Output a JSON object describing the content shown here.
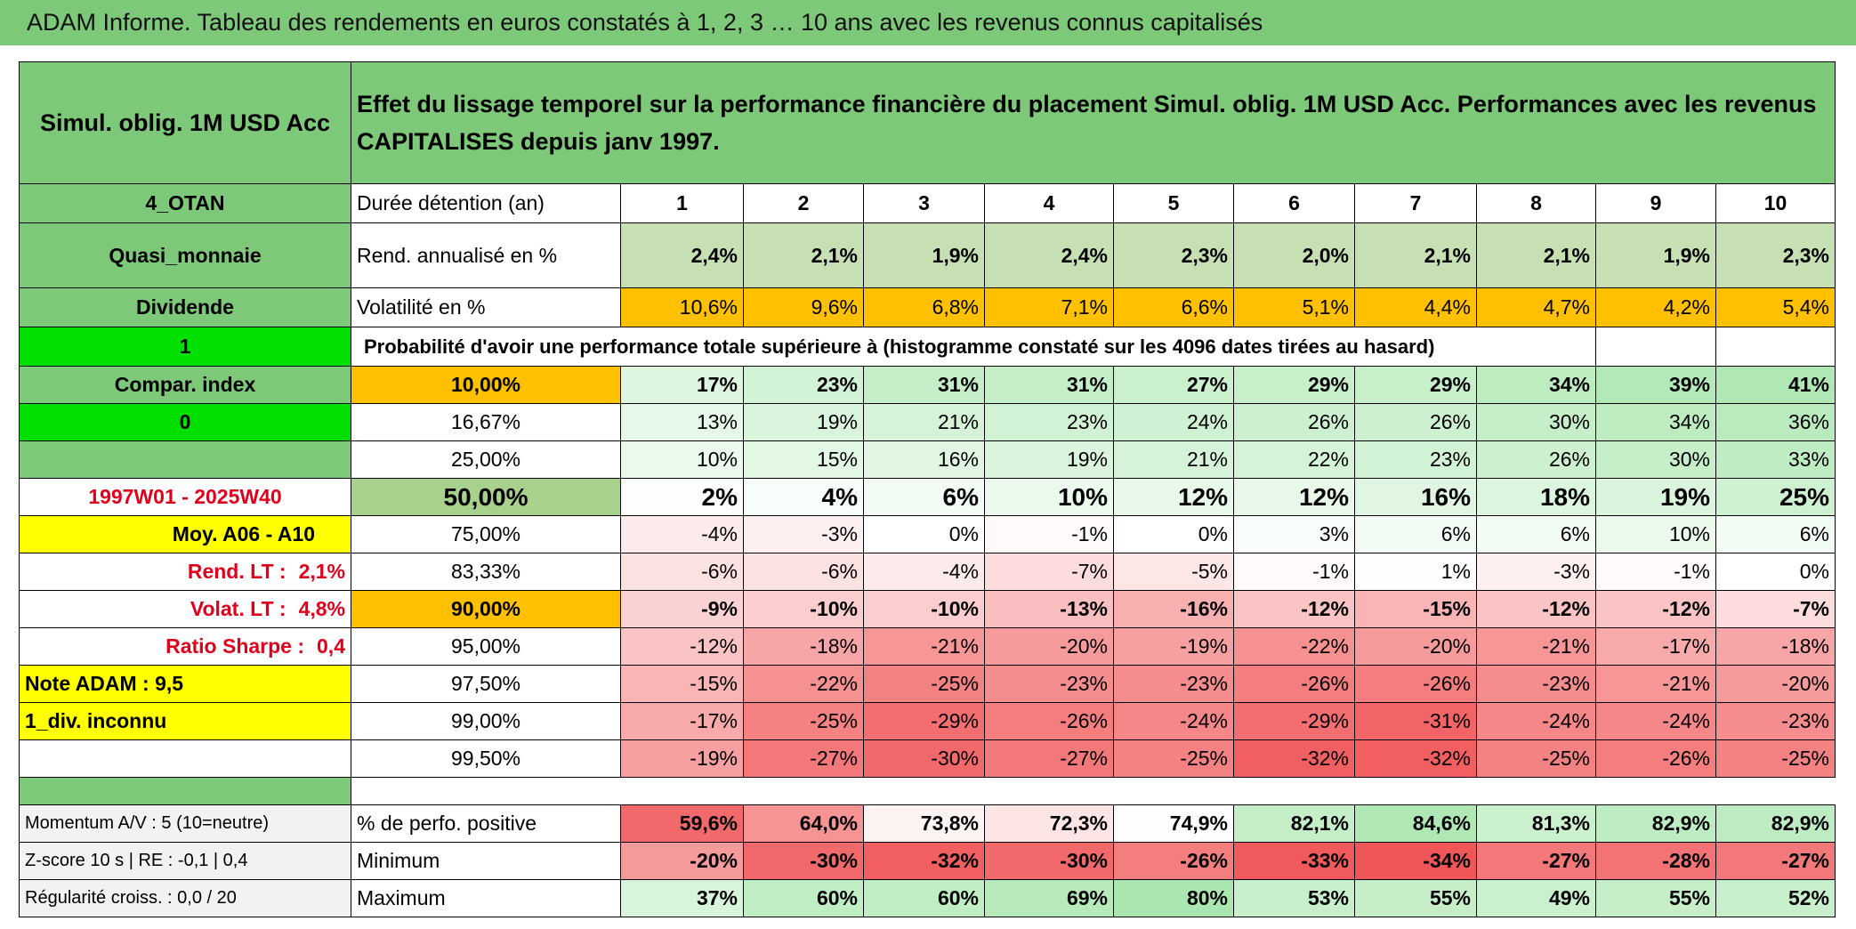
{
  "title": "ADAM Informe. Tableau des rendements en euros constatés à 1, 2, 3 … 10 ans avec les revenus connus capitalisés",
  "side": {
    "product": "Simul. oblig. 1M USD Acc",
    "code": "4_OTAN",
    "category": "Quasi_monnaie",
    "income": "Dividende",
    "flag1": "1",
    "compare": "Compar. index",
    "flag0": "0",
    "period": "1997W01 - 2025W40",
    "average": "Moy. A06 - A10",
    "rend_label": "Rend. LT :",
    "rend_value": "2,1%",
    "volat_label": "Volat. LT :",
    "volat_value": "4,8%",
    "sharpe_label": "Ratio Sharpe :",
    "sharpe_value": "0,4",
    "note": "Note ADAM : 9,5",
    "dividend_note": "1_div. inconnu"
  },
  "header": {
    "description": "Effet du lissage temporel sur la performance financière du placement Simul. oblig. 1M USD Acc. Performances avec les revenus CAPITALISES depuis janv 1997."
  },
  "table": {
    "duration_label": "Durée détention (an)",
    "durations": [
      1,
      2,
      3,
      4,
      5,
      6,
      7,
      8,
      9,
      10
    ],
    "rend": {
      "label": "Rend. annualisé en %",
      "values": [
        "2,4%",
        "2,1%",
        "1,9%",
        "2,4%",
        "2,3%",
        "2,0%",
        "2,1%",
        "2,1%",
        "1,9%",
        "2,3%"
      ]
    },
    "vol": {
      "label": "Volatilité en %",
      "values": [
        "10,6%",
        "9,6%",
        "6,8%",
        "7,1%",
        "6,6%",
        "5,1%",
        "4,4%",
        "4,7%",
        "4,2%",
        "5,4%"
      ]
    },
    "prob_title": "Probabilité d'avoir une performance totale supérieure à (histogramme constaté sur les 4096 dates tirées au hasard)",
    "prob_rows": [
      {
        "threshold": "10,00%",
        "values": [
          "17%",
          "23%",
          "31%",
          "31%",
          "27%",
          "29%",
          "29%",
          "34%",
          "39%",
          "41%"
        ]
      },
      {
        "threshold": "16,67%",
        "values": [
          "13%",
          "19%",
          "21%",
          "23%",
          "24%",
          "26%",
          "26%",
          "30%",
          "34%",
          "36%"
        ]
      },
      {
        "threshold": "25,00%",
        "values": [
          "10%",
          "15%",
          "16%",
          "19%",
          "21%",
          "22%",
          "23%",
          "26%",
          "30%",
          "33%"
        ]
      },
      {
        "threshold": "50,00%",
        "values": [
          "2%",
          "4%",
          "6%",
          "10%",
          "12%",
          "12%",
          "16%",
          "18%",
          "19%",
          "25%"
        ]
      },
      {
        "threshold": "75,00%",
        "values": [
          "-4%",
          "-3%",
          "0%",
          "-1%",
          "0%",
          "3%",
          "6%",
          "6%",
          "10%",
          "6%"
        ]
      },
      {
        "threshold": "83,33%",
        "values": [
          "-6%",
          "-6%",
          "-4%",
          "-7%",
          "-5%",
          "-1%",
          "1%",
          "-3%",
          "-1%",
          "0%"
        ]
      },
      {
        "threshold": "90,00%",
        "values": [
          "-9%",
          "-10%",
          "-10%",
          "-13%",
          "-16%",
          "-12%",
          "-15%",
          "-12%",
          "-12%",
          "-7%"
        ]
      },
      {
        "threshold": "95,00%",
        "values": [
          "-12%",
          "-18%",
          "-21%",
          "-20%",
          "-19%",
          "-22%",
          "-20%",
          "-21%",
          "-17%",
          "-18%"
        ]
      },
      {
        "threshold": "97,50%",
        "values": [
          "-15%",
          "-22%",
          "-25%",
          "-23%",
          "-23%",
          "-26%",
          "-26%",
          "-23%",
          "-21%",
          "-20%"
        ]
      },
      {
        "threshold": "99,00%",
        "values": [
          "-17%",
          "-25%",
          "-29%",
          "-26%",
          "-24%",
          "-29%",
          "-31%",
          "-24%",
          "-24%",
          "-23%"
        ]
      },
      {
        "threshold": "99,50%",
        "values": [
          "-19%",
          "-27%",
          "-30%",
          "-27%",
          "-25%",
          "-32%",
          "-32%",
          "-25%",
          "-26%",
          "-25%"
        ]
      }
    ],
    "positive": {
      "label": "% de perfo. positive",
      "values": [
        "59,6%",
        "64,0%",
        "73,8%",
        "72,3%",
        "74,9%",
        "82,1%",
        "84,6%",
        "81,3%",
        "82,9%",
        "82,9%"
      ]
    },
    "minimum": {
      "label": "Minimum",
      "values": [
        "-20%",
        "-30%",
        "-32%",
        "-30%",
        "-26%",
        "-33%",
        "-34%",
        "-27%",
        "-28%",
        "-27%"
      ]
    },
    "maximum": {
      "label": "Maximum",
      "values": [
        "37%",
        "60%",
        "60%",
        "69%",
        "80%",
        "53%",
        "55%",
        "49%",
        "55%",
        "52%"
      ]
    }
  },
  "footer": {
    "momentum": "Momentum A/V : 5 (10=neutre)",
    "zscore": "Z-score 10 s | RE : -0,1 | 0,4",
    "regularity": "Régularité croiss. : 0,0 / 20"
  }
}
